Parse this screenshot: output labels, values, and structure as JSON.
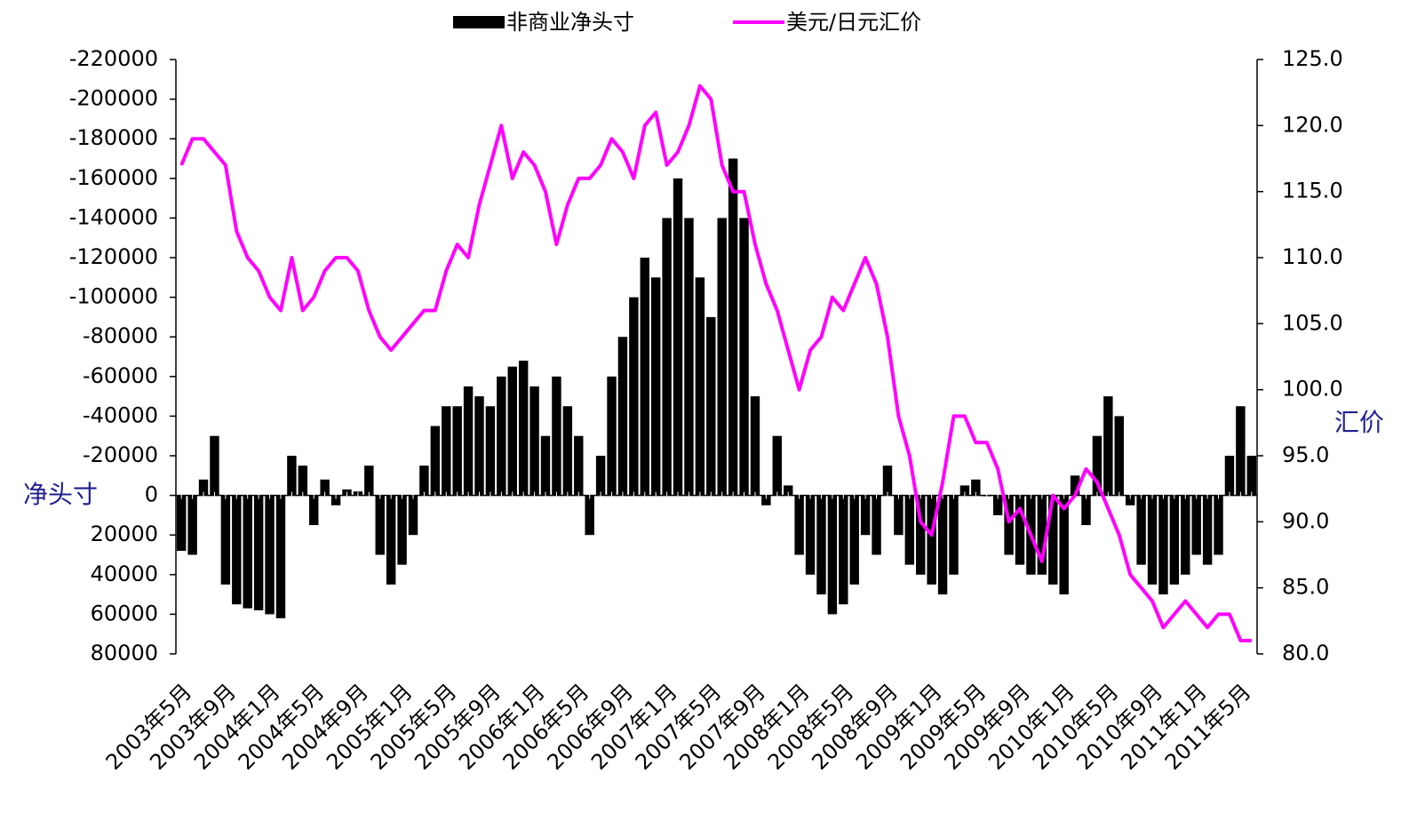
{
  "chart_data": {
    "type": "bar",
    "y_label": "净头寸",
    "y2_label": "汇价",
    "categories": [
      "2003年5月",
      null,
      null,
      null,
      "2003年9月",
      null,
      null,
      null,
      "2004年1月",
      null,
      null,
      null,
      "2004年5月",
      null,
      null,
      null,
      "2004年9月",
      null,
      null,
      null,
      "2005年1月",
      null,
      null,
      null,
      "2005年5月",
      null,
      null,
      null,
      "2005年9月",
      null,
      null,
      null,
      "2006年1月",
      null,
      null,
      null,
      "2006年5月",
      null,
      null,
      null,
      "2006年9月",
      null,
      null,
      null,
      "2007年1月",
      null,
      null,
      null,
      "2007年5月",
      null,
      null,
      null,
      "2007年9月",
      null,
      null,
      null,
      "2008年1月",
      null,
      null,
      null,
      "2008年5月",
      null,
      null,
      null,
      "2008年9月",
      null,
      null,
      null,
      "2009年1月",
      null,
      null,
      null,
      "2009年5月",
      null,
      null,
      null,
      "2009年9月",
      null,
      null,
      null,
      "2010年1月",
      null,
      null,
      null,
      "2010年5月",
      null,
      null,
      null,
      "2010年9月",
      null,
      null,
      null,
      "2011年1月",
      null,
      null,
      null,
      "2011年5月",
      null
    ],
    "series": [
      {
        "name": "非商业净头寸",
        "type": "bar",
        "color": "#000000",
        "values": [
          28000,
          30000,
          -8000,
          -30000,
          45000,
          55000,
          57000,
          58000,
          60000,
          62000,
          -20000,
          -15000,
          15000,
          -8000,
          5000,
          -3000,
          -2000,
          -15000,
          30000,
          45000,
          35000,
          20000,
          -15000,
          -35000,
          -45000,
          -45000,
          -55000,
          -50000,
          -45000,
          -60000,
          -65000,
          -68000,
          -55000,
          -30000,
          -60000,
          -45000,
          -30000,
          20000,
          -20000,
          -60000,
          -80000,
          -100000,
          -120000,
          -110000,
          -140000,
          -160000,
          -140000,
          -110000,
          -90000,
          -140000,
          -170000,
          -140000,
          -50000,
          5000,
          -30000,
          -5000,
          30000,
          40000,
          50000,
          60000,
          55000,
          45000,
          20000,
          30000,
          -15000,
          20000,
          35000,
          40000,
          45000,
          50000,
          40000,
          -5000,
          -8000,
          0,
          10000,
          30000,
          35000,
          40000,
          40000,
          45000,
          50000,
          -10000,
          15000,
          -30000,
          -50000,
          -40000,
          5000,
          35000,
          45000,
          50000,
          45000,
          40000,
          30000,
          35000,
          30000,
          -20000,
          -45000,
          -20000
        ]
      },
      {
        "name": "美元/日元汇价",
        "type": "line",
        "axis": "y2",
        "color": "#ff00ff",
        "values": [
          117,
          119,
          119,
          118,
          117,
          112,
          110,
          109,
          107,
          106,
          110,
          106,
          107,
          109,
          110,
          110,
          109,
          106,
          104,
          103,
          104,
          105,
          106,
          106,
          109,
          111,
          110,
          114,
          117,
          120,
          116,
          118,
          117,
          115,
          111,
          114,
          116,
          116,
          117,
          119,
          118,
          116,
          120,
          121,
          117,
          118,
          120,
          123,
          122,
          117,
          115,
          115,
          111,
          108,
          106,
          103,
          100,
          103,
          104,
          107,
          106,
          108,
          110,
          108,
          104,
          98,
          95,
          90,
          89,
          93,
          98,
          98,
          96,
          96,
          94,
          90,
          91,
          89,
          87,
          92,
          91,
          92,
          94,
          93,
          91,
          89,
          86,
          85,
          84,
          82,
          83,
          84,
          83,
          82,
          83,
          83,
          81,
          81
        ]
      }
    ],
    "ylim": [
      80000,
      -220000
    ],
    "yticks": [
      -220000,
      -200000,
      -180000,
      -160000,
      -140000,
      -120000,
      -100000,
      -80000,
      -60000,
      -40000,
      -20000,
      0,
      20000,
      40000,
      60000,
      80000
    ],
    "y2lim": [
      80,
      125
    ],
    "y2ticks": [
      {
        "value": 125,
        "label": "125.0"
      },
      {
        "value": 120,
        "label": "120.0"
      },
      {
        "value": 115,
        "label": "115.0"
      },
      {
        "value": 110,
        "label": "110.0"
      },
      {
        "value": 105,
        "label": "105.0"
      },
      {
        "value": 100,
        "label": "100.0"
      },
      {
        "value": 95,
        "label": "95.0"
      },
      {
        "value": 90,
        "label": "90.0"
      },
      {
        "value": 85,
        "label": "85.0"
      },
      {
        "value": 80,
        "label": "80.0"
      }
    ],
    "legend": "top"
  }
}
